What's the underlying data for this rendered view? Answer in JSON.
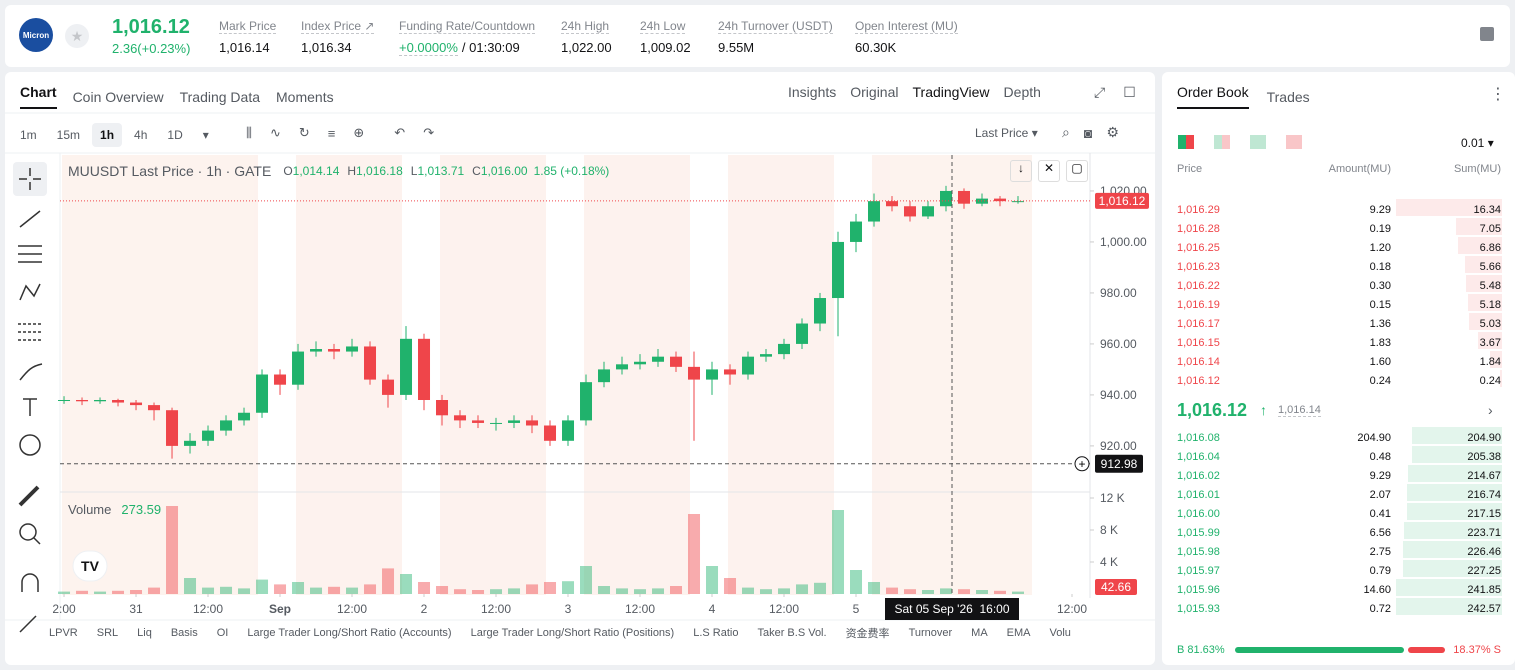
{
  "header": {
    "logo": "Micron",
    "price": "1,016.12",
    "change": "2.36(+0.23%)",
    "stats": [
      {
        "label": "Mark Price",
        "value": "1,016.14"
      },
      {
        "label": "Index Price ↗",
        "value": "1,016.34"
      },
      {
        "label": "Funding Rate/Countdown",
        "value": "+0.0000%",
        "extra": "/ 01:30:09"
      },
      {
        "label": "24h High",
        "value": "1,022.00"
      },
      {
        "label": "24h Low",
        "value": "1,009.02"
      },
      {
        "label": "24h Turnover (USDT)",
        "value": "9.55M"
      },
      {
        "label": "Open Interest (MU)",
        "value": "60.30K"
      }
    ]
  },
  "chart_tabs": [
    "Chart",
    "Coin Overview",
    "Trading Data",
    "Moments"
  ],
  "view_tabs": [
    "Insights",
    "Original",
    "TradingView",
    "Depth"
  ],
  "intervals": [
    "1m",
    "15m",
    "1h",
    "4h",
    "1D"
  ],
  "price_type": "Last Price",
  "legend": {
    "symbol": "MUUSDT Last Price · 1h · GATE",
    "ohlc": [
      {
        "label": "O",
        "value": "1,014.14"
      },
      {
        "label": "H",
        "value": "1,016.18"
      },
      {
        "label": "L",
        "value": "1,013.71"
      },
      {
        "label": "C",
        "value": "1,016.00"
      }
    ],
    "change": "1.85 (+0.18%)"
  },
  "chart_data": {
    "type": "candlestick",
    "x": [
      -12,
      -9,
      -6,
      -3,
      0,
      3,
      6,
      9,
      12,
      15,
      18,
      21,
      24,
      27,
      30,
      33,
      36,
      39,
      42,
      45,
      48,
      51,
      54,
      57,
      60,
      63,
      66,
      69,
      72,
      75,
      78,
      81,
      84,
      87,
      90,
      93,
      96,
      99,
      102,
      105,
      108,
      111,
      114,
      117,
      120,
      123,
      126,
      129,
      132,
      135,
      138,
      141,
      144,
      147
    ],
    "open": [
      938,
      938,
      937.5,
      938,
      937,
      936,
      934,
      920,
      922,
      926,
      930,
      933,
      948,
      944,
      957,
      958,
      957,
      959,
      946,
      940,
      962,
      938,
      932,
      930,
      929,
      929,
      930,
      928,
      922,
      930,
      945,
      950,
      952,
      953,
      955,
      951,
      946,
      950,
      948,
      955,
      956,
      960,
      968,
      978,
      1000,
      1008,
      1016,
      1014,
      1010,
      1014,
      1020,
      1015,
      1017,
      1016
    ],
    "high": [
      939.5,
      939,
      939,
      938.5,
      938,
      937,
      935,
      925,
      928,
      932,
      935,
      950,
      950,
      960,
      961,
      960,
      962,
      961,
      948,
      967,
      964,
      940,
      934,
      932,
      931,
      932,
      932,
      930,
      932,
      948,
      953,
      955,
      956,
      958,
      957,
      957,
      953,
      952,
      957,
      958,
      962,
      970,
      980,
      1004,
      1011,
      1019,
      1018,
      1016,
      1016,
      1022,
      1021,
      1019,
      1018,
      1018
    ],
    "low": [
      936.5,
      936,
      936.5,
      935.5,
      934,
      930,
      915,
      917,
      920,
      924,
      928,
      931,
      940,
      942,
      955,
      954,
      955,
      944,
      935,
      938,
      934,
      928,
      927,
      927,
      926,
      927,
      925,
      920,
      920,
      928,
      943,
      948,
      950,
      951,
      949,
      922,
      940,
      944,
      946,
      953,
      954,
      958,
      965,
      963,
      996,
      1006,
      1012,
      1008,
      1009,
      1012,
      1013,
      1014,
      1014,
      1015
    ],
    "close": [
      938,
      937.5,
      938,
      937,
      936,
      934,
      920,
      922,
      926,
      930,
      933,
      948,
      944,
      957,
      958,
      957,
      959,
      946,
      940,
      962,
      938,
      932,
      930,
      929,
      929,
      930,
      928,
      922,
      930,
      945,
      950,
      952,
      953,
      955,
      951,
      946,
      950,
      948,
      955,
      956,
      960,
      968,
      978,
      1000,
      1008,
      1016,
      1014,
      1010,
      1014,
      1020,
      1015,
      1017,
      1016,
      1016
    ],
    "volume": [
      300,
      400,
      300,
      400,
      500,
      800,
      11000,
      2000,
      800,
      900,
      700,
      1800,
      1200,
      1500,
      800,
      900,
      800,
      1200,
      3200,
      2500,
      1500,
      1000,
      600,
      500,
      600,
      700,
      1200,
      1500,
      1600,
      3500,
      1000,
      700,
      600,
      700,
      1000,
      10000,
      3500,
      2000,
      800,
      600,
      700,
      1200,
      1400,
      10500,
      3000,
      1500,
      800,
      600,
      500,
      700,
      600,
      500,
      400,
      300
    ],
    "xlim": [
      -12.67,
      159
    ],
    "xticks": [
      {
        "value": -12,
        "label": "2:00"
      },
      {
        "value": 0,
        "label": "31"
      },
      {
        "value": 12,
        "label": "12:00"
      },
      {
        "value": 24,
        "label": "Sep"
      },
      {
        "value": 36,
        "label": "12:00"
      },
      {
        "value": 48,
        "label": "2"
      },
      {
        "value": 60,
        "label": "12:00"
      },
      {
        "value": 72,
        "label": "3"
      },
      {
        "value": 84,
        "label": "12:00"
      },
      {
        "value": 96,
        "label": "4"
      },
      {
        "value": 108,
        "label": "12:00"
      },
      {
        "value": 120,
        "label": "5"
      },
      {
        "value": 156,
        "label": "12:00"
      }
    ],
    "ylim": [
      902.7,
      1034.1
    ],
    "yticks": [
      {
        "value": 920,
        "label": "920.00"
      },
      {
        "value": 940,
        "label": "940.00"
      },
      {
        "value": 960,
        "label": "960.00"
      },
      {
        "value": 980,
        "label": "980.00"
      },
      {
        "value": 1000,
        "label": "1,000.00"
      },
      {
        "value": 1020,
        "label": "1,020.00"
      }
    ],
    "last_price": {
      "value": 1016.12,
      "label": "1,016.12"
    },
    "crosshair": {
      "x": 136,
      "x_label": "Sat 05 Sep '26  16:00",
      "y": 912.98
    },
    "volume_title": "Volume",
    "volume_value": "273.59",
    "volume_last": "42.66",
    "volume_lim": [
      0,
      12750
    ],
    "volume_ticks": [
      {
        "value": 4000,
        "label": "4 K"
      },
      {
        "value": 8000,
        "label": "8 K"
      },
      {
        "value": 12000,
        "label": "12 K"
      }
    ],
    "up_color": "#20b26c",
    "down_color": "#ef454a"
  },
  "indicators": [
    "LPVR",
    "SRL",
    "Liq",
    "Basis",
    "OI",
    "Large Trader Long/Short Ratio (Accounts)",
    "Large Trader Long/Short Ratio (Positions)",
    "L.S Ratio",
    "Taker B.S Vol.",
    "资金费率",
    "Turnover",
    "MA",
    "EMA",
    "Volu"
  ],
  "order_book": {
    "tabs": [
      "Order Book",
      "Trades"
    ],
    "precision": "0.01",
    "columns": [
      "Price",
      "Amount(MU)",
      "Sum(MU)"
    ],
    "asks": {
      "price": [
        "1,016.29",
        "1,016.28",
        "1,016.25",
        "1,016.23",
        "1,016.22",
        "1,016.19",
        "1,016.17",
        "1,016.15",
        "1,016.14",
        "1,016.12"
      ],
      "amount": [
        "9.29",
        "0.19",
        "1.20",
        "0.18",
        "0.30",
        "0.15",
        "1.36",
        "1.83",
        "1.60",
        "0.24"
      ],
      "sum": [
        "16.34",
        "7.05",
        "6.86",
        "5.66",
        "5.48",
        "5.18",
        "5.03",
        "3.67",
        "1.84",
        "0.24"
      ]
    },
    "mid_price": "1,016.12",
    "mark_price": "1,016.14",
    "bids": {
      "price": [
        "1,016.08",
        "1,016.04",
        "1,016.02",
        "1,016.01",
        "1,016.00",
        "1,015.99",
        "1,015.98",
        "1,015.97",
        "1,015.96",
        "1,015.93"
      ],
      "amount": [
        "204.90",
        "0.48",
        "9.29",
        "2.07",
        "0.41",
        "6.56",
        "2.75",
        "0.79",
        "14.60",
        "0.72"
      ],
      "sum": [
        "204.90",
        "205.38",
        "214.67",
        "216.74",
        "217.15",
        "223.71",
        "226.46",
        "227.25",
        "241.85",
        "242.57"
      ]
    },
    "ratio": {
      "buy": {
        "value": 81.63,
        "label": "B 81.63%"
      },
      "sell": {
        "value": 18.37,
        "label": "18.37% S"
      }
    }
  }
}
